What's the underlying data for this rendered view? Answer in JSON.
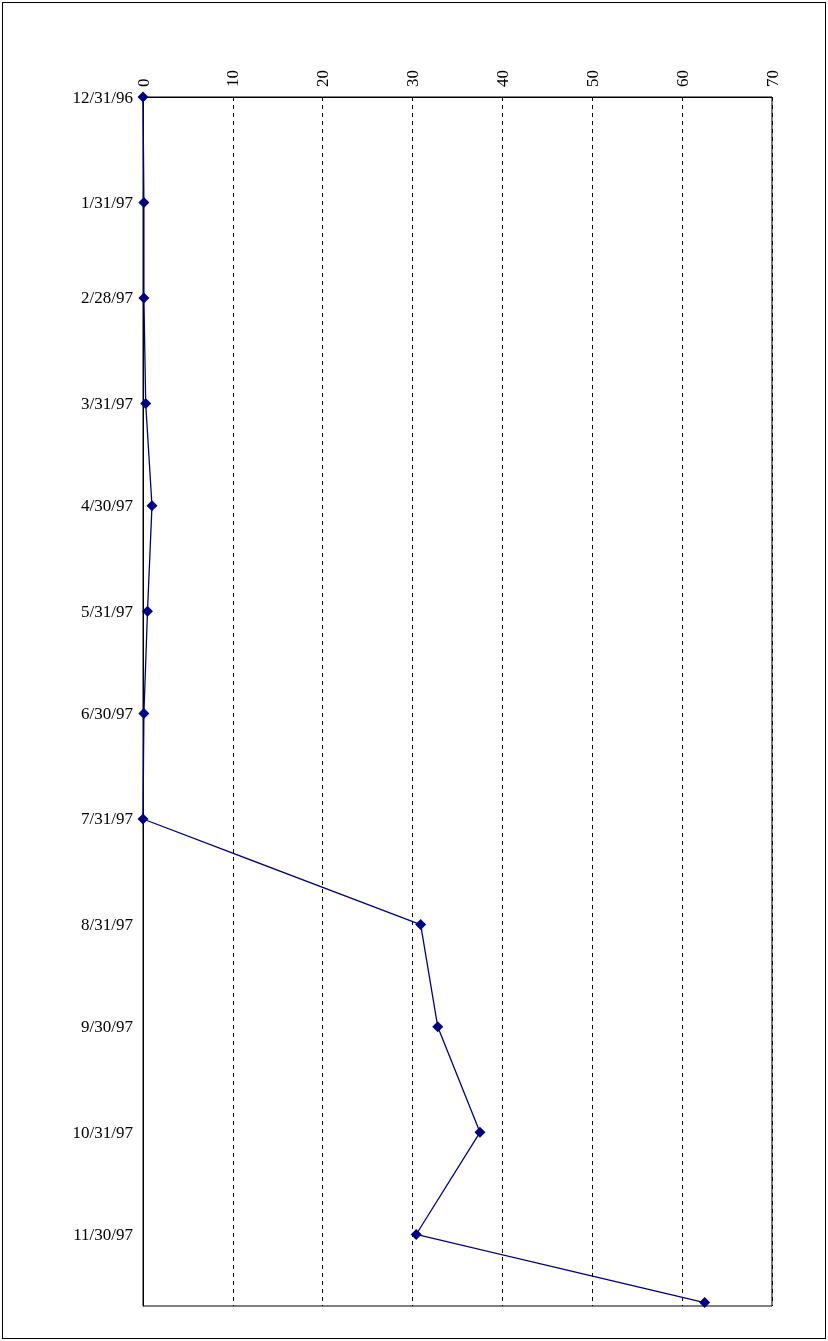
{
  "chart_data": {
    "type": "line",
    "orientation": "horizontal",
    "marker": "diamond",
    "grid": "x",
    "xlim": [
      0,
      70
    ],
    "xticks": [
      0,
      10,
      20,
      30,
      40,
      50,
      60,
      70
    ],
    "ylim": [
      "1997-12-21",
      "1996-12-31"
    ],
    "yticks": [
      {
        "value": "1996-12-31",
        "label": "12/31/96"
      },
      {
        "value": "1997-01-31",
        "label": "1/31/97"
      },
      {
        "value": "1997-02-28",
        "label": "2/28/97"
      },
      {
        "value": "1997-03-31",
        "label": "3/31/97"
      },
      {
        "value": "1997-04-30",
        "label": "4/30/97"
      },
      {
        "value": "1997-05-31",
        "label": "5/31/97"
      },
      {
        "value": "1997-06-30",
        "label": "6/30/97"
      },
      {
        "value": "1997-07-31",
        "label": "7/31/97"
      },
      {
        "value": "1997-08-31",
        "label": "8/31/97"
      },
      {
        "value": "1997-09-30",
        "label": "9/30/97"
      },
      {
        "value": "1997-10-31",
        "label": "10/31/97"
      },
      {
        "value": "1997-11-30",
        "label": "11/30/97"
      }
    ],
    "series": [
      {
        "color": "#000080",
        "x": [
          "1996-12-31",
          "1997-01-31",
          "1997-02-28",
          "1997-03-31",
          "1997-04-30",
          "1997-05-31",
          "1997-06-30",
          "1997-07-31",
          "1997-08-31",
          "1997-09-30",
          "1997-10-31",
          "1997-11-30",
          "1997-12-20"
        ],
        "values": [
          0,
          0.1,
          0.1,
          0.3,
          1.0,
          0.5,
          0.1,
          0,
          30.9,
          32.8,
          37.5,
          30.4,
          62.5
        ]
      }
    ]
  }
}
